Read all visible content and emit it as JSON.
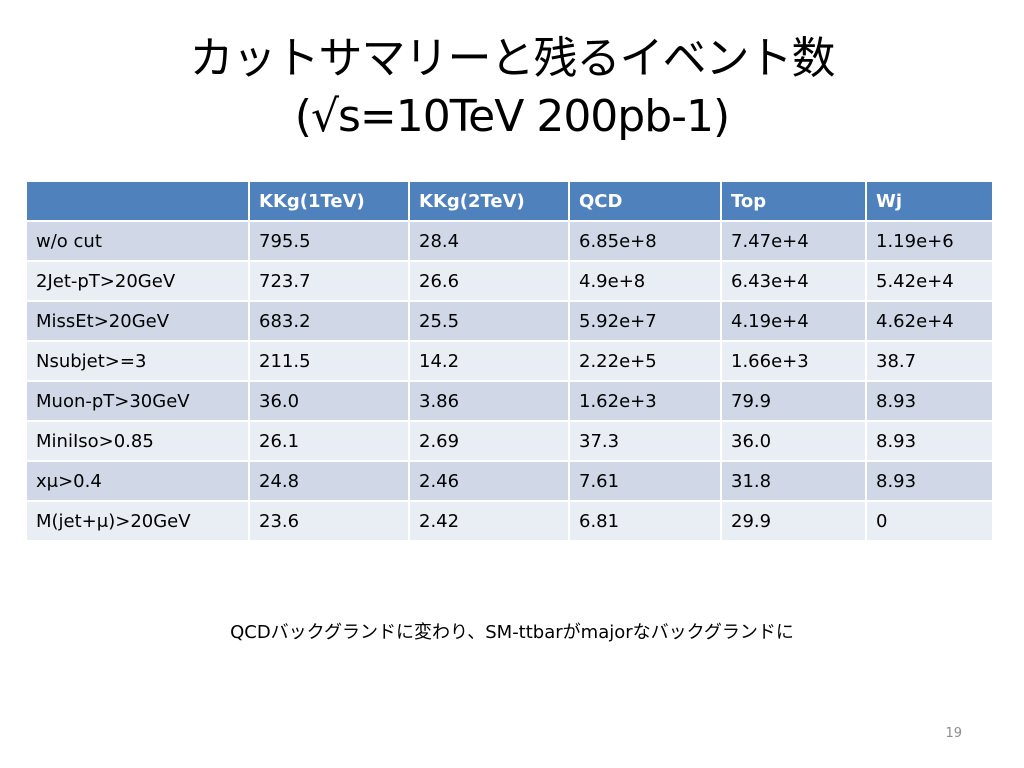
{
  "slide": {
    "title_line1": "カットサマリーと残るイベント数",
    "title_line2": "(√s=10TeV 200pb-1)",
    "page_number": "19"
  },
  "table": {
    "headers": [
      "",
      "KKg(1TeV)",
      "KKg(2TeV)",
      "QCD",
      "Top",
      "Wj"
    ],
    "rows": [
      [
        "w/o cut",
        "795.5",
        "28.4",
        "6.85e+8",
        "7.47e+4",
        "1.19e+6"
      ],
      [
        "2Jet-pT>20GeV",
        "723.7",
        "26.6",
        "4.9e+8",
        "6.43e+4",
        "5.42e+4"
      ],
      [
        "MissEt>20GeV",
        "683.2",
        "25.5",
        "5.92e+7",
        "4.19e+4",
        "4.62e+4"
      ],
      [
        "Nsubjet>=3",
        "211.5",
        "14.2",
        "2.22e+5",
        "1.66e+3",
        "38.7"
      ],
      [
        "Muon-pT>30GeV",
        "36.0",
        "3.86",
        "1.62e+3",
        "79.9",
        "8.93"
      ],
      [
        "MiniIso>0.85",
        "26.1",
        "2.69",
        "37.3",
        "36.0",
        "8.93"
      ],
      [
        "xμ>0.4",
        "24.8",
        "2.46",
        "7.61",
        "31.8",
        "8.93"
      ],
      [
        "M(jet+μ)>20GeV",
        "23.6",
        "2.42",
        "6.81",
        "29.9",
        "0"
      ]
    ]
  },
  "footer": {
    "note": "QCDバックグランドに変わり、SM-ttbarがmajorなバックグランドに"
  }
}
